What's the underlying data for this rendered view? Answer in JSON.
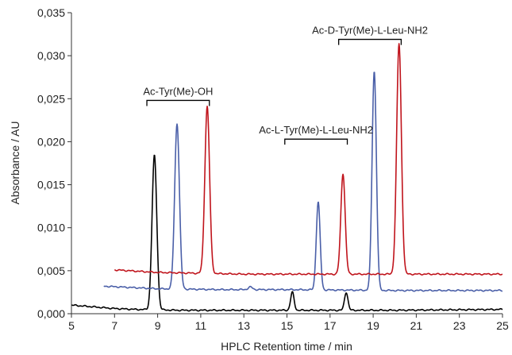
{
  "chart_data": {
    "type": "line",
    "title": "",
    "xlabel": "HPLC Retention time / min",
    "ylabel": "Absorbance / AU",
    "xlim": [
      5,
      25
    ],
    "ylim": [
      0,
      0.035
    ],
    "xticks": [
      "5",
      "7",
      "9",
      "11",
      "13",
      "15",
      "17",
      "19",
      "21",
      "23",
      "25"
    ],
    "yticks": [
      "0,000",
      "0,005",
      "0,010",
      "0,015",
      "0,020",
      "0,025",
      "0,030",
      "0,035"
    ],
    "grid": false,
    "legend": "none",
    "series": [
      {
        "color": "#000000",
        "baseline": [
          [
            5.0,
            0.001
          ],
          [
            6.0,
            0.0008
          ],
          [
            7.0,
            0.0006
          ],
          [
            8.0,
            0.0005
          ],
          [
            10.0,
            0.0004
          ],
          [
            15.0,
            0.0004
          ],
          [
            20.0,
            0.0004
          ],
          [
            25.0,
            0.0005
          ]
        ],
        "peaks": [
          {
            "x": 8.85,
            "y": 0.0184,
            "sigma": 0.11
          },
          {
            "x": 15.25,
            "y": 0.0025,
            "sigma": 0.08
          },
          {
            "x": 17.75,
            "y": 0.0025,
            "sigma": 0.08
          }
        ]
      },
      {
        "color": "#4a5fa8",
        "baseline": [
          [
            6.5,
            0.0032
          ],
          [
            9.0,
            0.0029
          ],
          [
            12.0,
            0.0028
          ],
          [
            15.0,
            0.0028
          ],
          [
            20.0,
            0.0027
          ],
          [
            25.0,
            0.0027
          ]
        ],
        "peaks": [
          {
            "x": 9.9,
            "y": 0.0221,
            "sigma": 0.11
          },
          {
            "x": 13.3,
            "y": 0.0031,
            "sigma": 0.1
          },
          {
            "x": 16.45,
            "y": 0.013,
            "sigma": 0.09
          },
          {
            "x": 19.05,
            "y": 0.0282,
            "sigma": 0.1
          }
        ]
      },
      {
        "color": "#c0141c",
        "baseline": [
          [
            7.0,
            0.0051
          ],
          [
            9.0,
            0.0048
          ],
          [
            13.0,
            0.0046
          ],
          [
            17.0,
            0.0046
          ],
          [
            21.0,
            0.0046
          ],
          [
            25.0,
            0.0046
          ]
        ],
        "peaks": [
          {
            "x": 11.3,
            "y": 0.0241,
            "sigma": 0.11
          },
          {
            "x": 17.6,
            "y": 0.0163,
            "sigma": 0.1
          },
          {
            "x": 20.2,
            "y": 0.0314,
            "sigma": 0.11
          }
        ]
      }
    ],
    "annotations": [
      {
        "text": "Ac-Tyr(Me)-OH",
        "x1": 8.5,
        "x2": 11.4,
        "y": 0.0248
      },
      {
        "text": "Ac-L-Tyr(Me)-L-Leu-NH2",
        "x1": 14.9,
        "x2": 17.8,
        "y": 0.0203
      },
      {
        "text": "Ac-D-Tyr(Me)-L-Leu-NH2",
        "x1": 17.4,
        "x2": 20.3,
        "y": 0.0319
      }
    ]
  }
}
